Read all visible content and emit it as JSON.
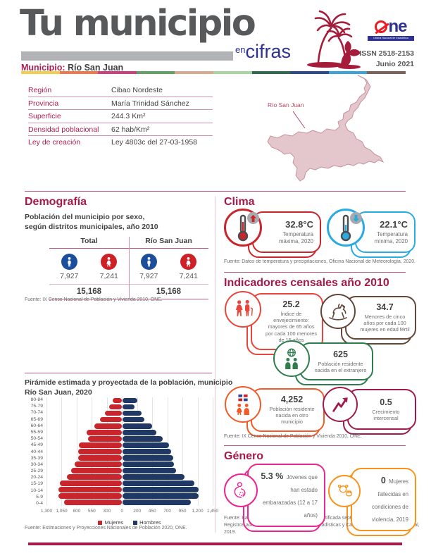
{
  "header": {
    "title": "Tu municipio",
    "tagline_en": "en",
    "tagline_cifras": "cifras",
    "municipio_label": "Municipio:",
    "municipio_name": "Río San Juan",
    "logo_ne": "ne",
    "logo_tagline": "Oficina Nacional de Estadística",
    "issn": "ISSN  2518-2153",
    "date": "Junio 2021",
    "strip_colors": [
      "#F2CF4B",
      "#F0794B",
      "#CE3F7D",
      "#5FA264",
      "#D9AA8D",
      "#A9D6A0",
      "#2F6B4F",
      "#2C4A8C",
      "#3BA3DC",
      "#7D6157"
    ]
  },
  "info": {
    "rows": [
      {
        "label": "Región",
        "value": "Cibao Nordeste"
      },
      {
        "label": "Provincia",
        "value": "María Trinidad Sánchez"
      },
      {
        "label": "Superficie",
        "value": "244.3 Km²"
      },
      {
        "label": "Densidad poblacional",
        "value": "62 hab/Km²"
      },
      {
        "label": "Ley de creación",
        "value": "Ley 4803c del 27-03-1958"
      }
    ]
  },
  "map": {
    "label": "Río San Juan",
    "fill": "#E3C7CD",
    "stroke": "#C9909B"
  },
  "demografia": {
    "heading": "Demografía",
    "subtitle": "Población del municipio por sexo,\nsegún distritos municipales, año 2010",
    "male_color": "#1B4E9B",
    "female_color": "#CE2027",
    "groups": [
      {
        "header": "Total",
        "male": "7,927",
        "female": "7,241",
        "total": "15,168"
      },
      {
        "header": "Río San Juan",
        "male": "7,927",
        "female": "7,241",
        "total": "15,168"
      }
    ],
    "fuente": "Fuente: IX Censo Nacional de Población y Vivienda 2010, ONE."
  },
  "clima": {
    "heading": "Clima",
    "cards": [
      {
        "value": "32.8°C",
        "label": "Temperatura máxima, 2020",
        "color": "#C9252C",
        "trend": "up"
      },
      {
        "value": "22.1°C",
        "label": "Temperatura mínima, 2020",
        "color": "#29ABE2",
        "trend": "down"
      }
    ],
    "fuente": "Fuente: Datos de temperatura y precipitaciones, Oficina Nacional de Meteorología, 2020."
  },
  "indicadores": {
    "heading": "Indicadores censales año 2010",
    "cards": [
      {
        "value": "25.2",
        "label": "Índice de envejecimiento: mayores de 65 años por cada 100 menores de 15 años",
        "color": "#E8463C"
      },
      {
        "value": "34.7",
        "label": "Menores de cinco años por cada 100 mujeres en edad fértil",
        "color": "#63473A"
      },
      {
        "value": "625",
        "label": "Población residente nacida en el extranjero",
        "color": "#2E7D4E"
      },
      {
        "value": "4,252",
        "label": "Población residente nacida en otro municipio",
        "color": "#F15A29"
      },
      {
        "value": "0.5",
        "label": "Crecimiento intercensal",
        "color": "#A01A4D"
      }
    ],
    "fuente": "Fuente: IX Censo Nacional de Población y Vivienda 2010, ONE."
  },
  "genero": {
    "heading": "Género",
    "cards": [
      {
        "value": "5.3 %",
        "label": "Jóvenes que han estado embarazadas (12 a 17 años)",
        "color": "#EC268F"
      },
      {
        "value": "0",
        "label": "Mujeres fallecidas en condiciones de violencia, 2019",
        "color": "#F7941E"
      }
    ],
    "fuente": "Fuente: Base de datos SIUBEN ESH-2012, certificada septiembre 2018.\nRegistros administrativos de la Oficina de Estadísticas y Cartografía de la Policía Nacional, 2019."
  },
  "chart_data": {
    "type": "bar",
    "subtype": "population_pyramid",
    "title": "Pirámide estimada y proyectada de la población, municipio\nRío San Juan, 2020",
    "categories_top_down": [
      "80-84",
      "75-79",
      "70-74",
      "65-69",
      "60-64",
      "55-59",
      "50-54",
      "45-49",
      "40-44",
      "35-39",
      "30-34",
      "25-29",
      "20-24",
      "15-19",
      "10-14",
      "5-9",
      "0-4"
    ],
    "series": [
      {
        "name": "Mujeres",
        "color": "#C9252C",
        "values": [
          160,
          220,
          290,
          380,
          480,
          610,
          590,
          740,
          750,
          750,
          815,
          880,
          950,
          1070,
          1090,
          1100,
          1000
        ]
      },
      {
        "name": "Hombres",
        "color": "#1F3864",
        "values": [
          240,
          190,
          300,
          345,
          475,
          545,
          640,
          750,
          775,
          815,
          825,
          865,
          1000,
          1150,
          1220,
          1220,
          1100
        ]
      }
    ],
    "x_ticks": [
      "1,300",
      "1,050",
      "800",
      "550",
      "300",
      "0",
      "200",
      "450",
      "700",
      "950",
      "1,200",
      "1,450"
    ],
    "axis_max_left": 1300,
    "axis_max_right": 1450,
    "grid": true,
    "legend_position": "bottom",
    "fuente": "Fuente: Estimaciones y Proyecciones Nacionales de Población 2020, ONE."
  },
  "footer": {
    "accent_color": "#A6194B"
  }
}
